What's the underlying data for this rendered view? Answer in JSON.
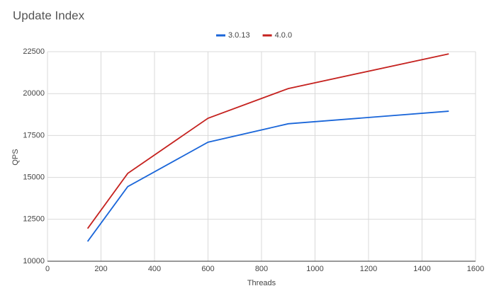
{
  "chart_data": {
    "type": "line",
    "title": "Update Index",
    "x_label": "Threads",
    "y_label": "QPS",
    "x": [
      150,
      300,
      600,
      900,
      1500
    ],
    "series": [
      {
        "name": "3.0.13",
        "color": "#1a66d9",
        "values": [
          11180,
          14450,
          17100,
          18200,
          18950
        ]
      },
      {
        "name": "4.0.0",
        "color": "#c5221f",
        "values": [
          11950,
          15240,
          18530,
          20300,
          22370
        ]
      }
    ],
    "xlim": [
      0,
      1600
    ],
    "xticks": [
      0,
      200,
      400,
      600,
      800,
      1000,
      1200,
      1400,
      1600
    ],
    "ylim": [
      10000,
      22500
    ],
    "yticks": [
      10000,
      12500,
      15000,
      17500,
      20000,
      22500
    ],
    "grid": true,
    "legend": "top"
  }
}
